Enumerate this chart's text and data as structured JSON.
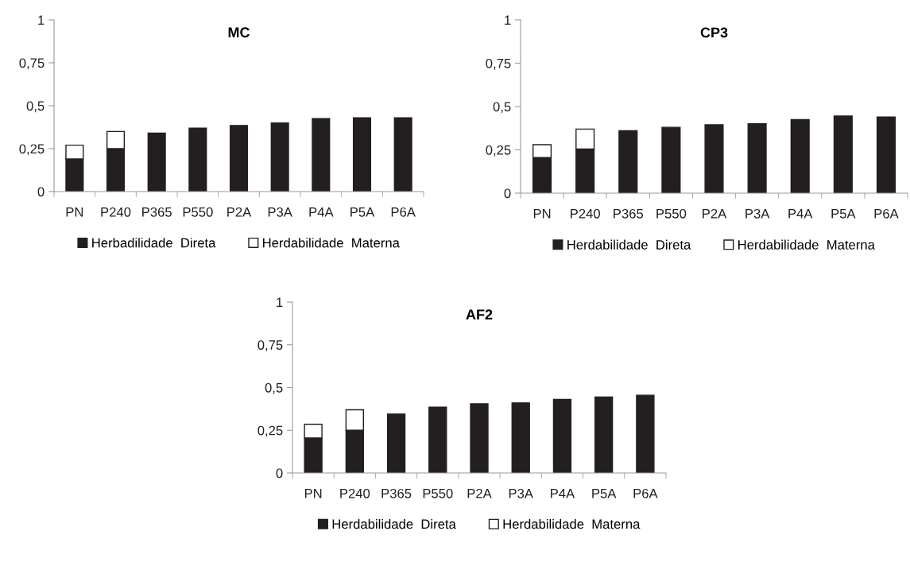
{
  "chart_data": [
    {
      "type": "bar",
      "title": "MC",
      "stacked": true,
      "categories": [
        "PN",
        "P240",
        "P365",
        "P550",
        "P2A",
        "P3A",
        "P4A",
        "P5A",
        "P6A"
      ],
      "series": [
        {
          "name": "Herbadilidade  Direta",
          "color": "#231f20",
          "values": [
            0.19,
            0.25,
            0.34,
            0.37,
            0.385,
            0.4,
            0.425,
            0.43,
            0.43
          ]
        },
        {
          "name": "Herdabilidade  Materna",
          "color": "#ffffff",
          "values": [
            0.08,
            0.1,
            null,
            null,
            null,
            null,
            null,
            null,
            null
          ]
        }
      ],
      "ylim": [
        0,
        1
      ],
      "yticks": [
        0,
        {
          "value": 0.25,
          "label": "0,25"
        },
        {
          "value": 0.5,
          "label": "0,5"
        },
        {
          "value": 0.75,
          "label": "0,75"
        },
        1
      ],
      "grid": false,
      "legend": "bottom"
    },
    {
      "type": "bar",
      "title": "CP3",
      "stacked": true,
      "categories": [
        "PN",
        "P240",
        "P365",
        "P550",
        "P2A",
        "P3A",
        "P4A",
        "P5A",
        "P6A"
      ],
      "series": [
        {
          "name": "Herdabilidade  Direta",
          "color": "#231f20",
          "values": [
            0.205,
            0.255,
            0.36,
            0.38,
            0.395,
            0.4,
            0.425,
            0.445,
            0.44
          ]
        },
        {
          "name": "Herdabilidade  Materna",
          "color": "#ffffff",
          "values": [
            0.075,
            0.115,
            null,
            null,
            null,
            null,
            null,
            null,
            null
          ]
        }
      ],
      "ylim": [
        0,
        1
      ],
      "yticks": [
        0,
        {
          "value": 0.25,
          "label": "0,25"
        },
        {
          "value": 0.5,
          "label": "0,5"
        },
        {
          "value": 0.75,
          "label": "0,75"
        },
        1
      ],
      "grid": false,
      "legend": "bottom"
    },
    {
      "type": "bar",
      "title": "AF2",
      "stacked": true,
      "categories": [
        "PN",
        "P240",
        "P365",
        "P550",
        "P2A",
        "P3A",
        "P4A",
        "P5A",
        "P6A"
      ],
      "series": [
        {
          "name": "Herdabilidade  Direta",
          "color": "#231f20",
          "values": [
            0.205,
            0.25,
            0.345,
            0.385,
            0.405,
            0.41,
            0.43,
            0.445,
            0.455
          ]
        },
        {
          "name": "Herdabilidade  Materna",
          "color": "#ffffff",
          "values": [
            0.08,
            0.12,
            null,
            null,
            null,
            null,
            null,
            null,
            null
          ]
        }
      ],
      "ylim": [
        0,
        1
      ],
      "yticks": [
        0,
        {
          "value": 0.25,
          "label": "0,25"
        },
        {
          "value": 0.5,
          "label": "0,5"
        },
        {
          "value": 0.75,
          "label": "0,75"
        },
        1
      ],
      "grid": false,
      "legend": "bottom"
    }
  ]
}
